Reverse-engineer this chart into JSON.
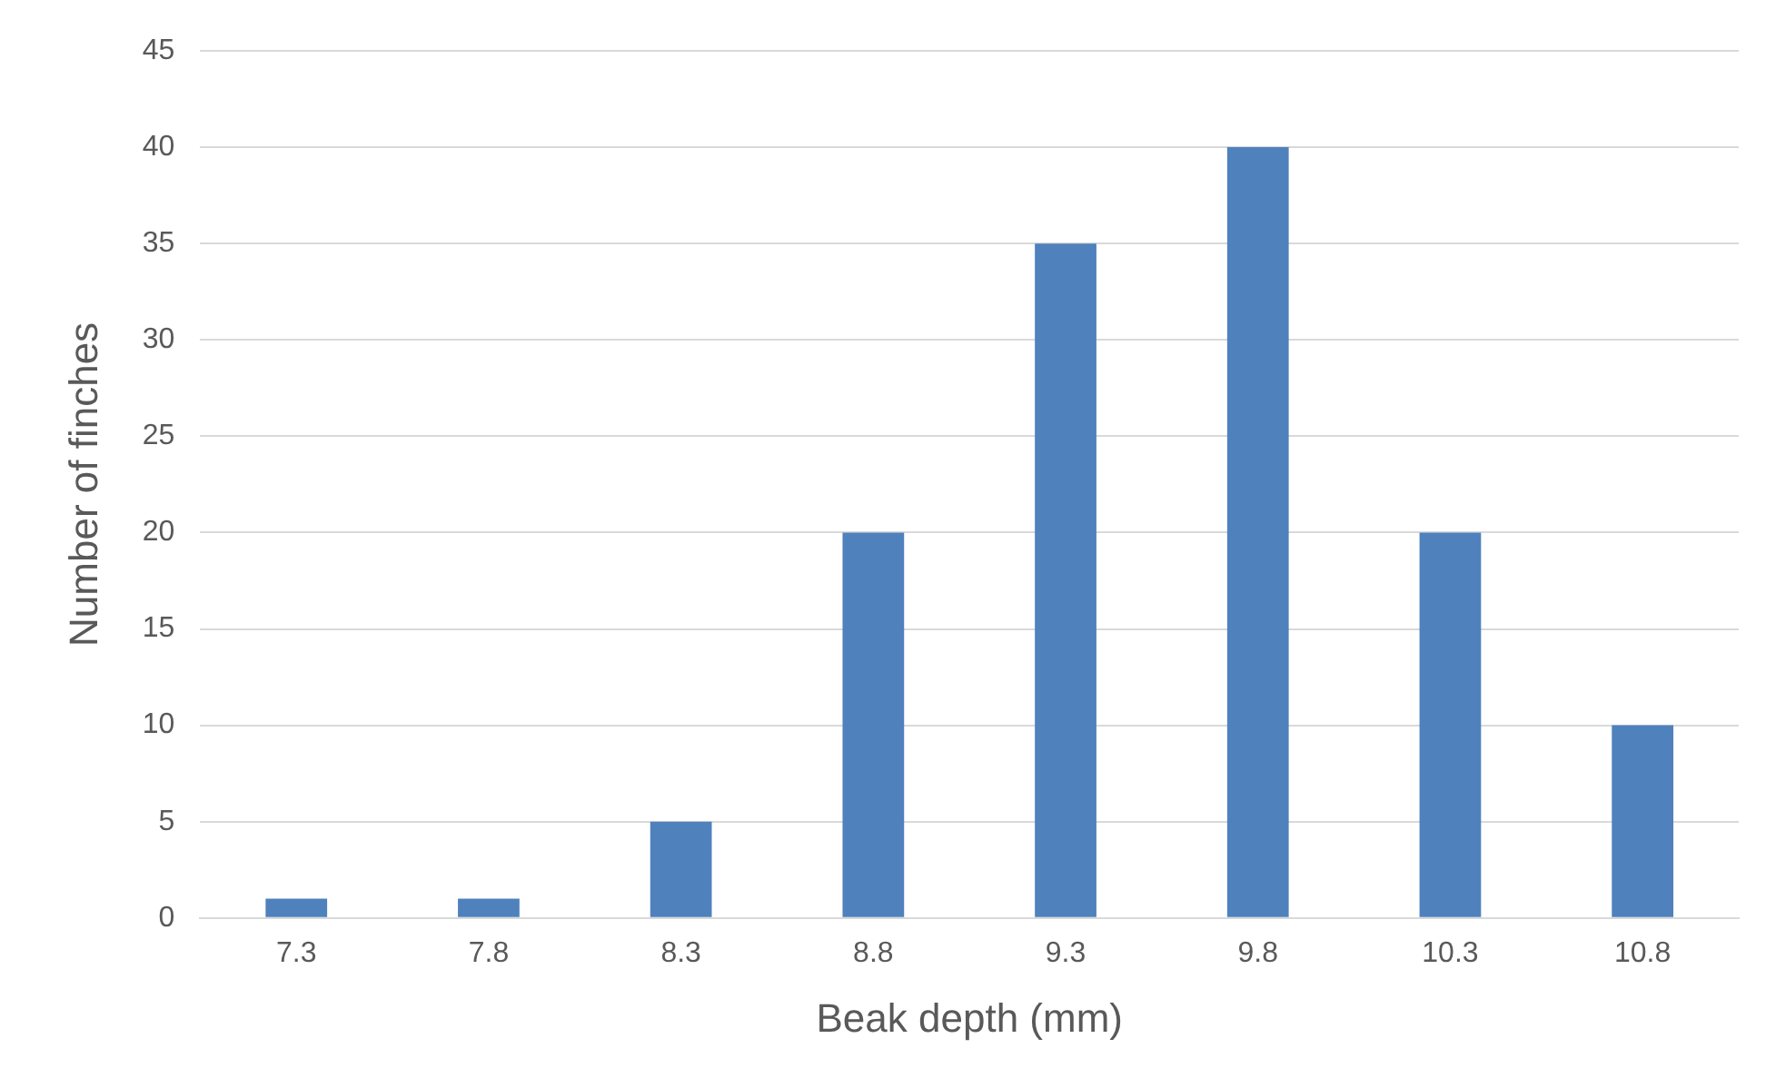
{
  "chart_data": {
    "type": "bar",
    "xlabel": "Beak depth (mm)",
    "ylabel": "Number of finches",
    "categories": [
      "7.3",
      "7.8",
      "8.3",
      "8.8",
      "9.3",
      "9.8",
      "10.3",
      "10.8"
    ],
    "values": [
      1,
      1,
      5,
      20,
      35,
      40,
      20,
      10
    ],
    "color": "#4f81bd",
    "ylim": [
      0,
      45
    ],
    "yticks": [
      0,
      5,
      10,
      15,
      20,
      25,
      30,
      35,
      40,
      45
    ],
    "grid": "y",
    "legend": false
  }
}
